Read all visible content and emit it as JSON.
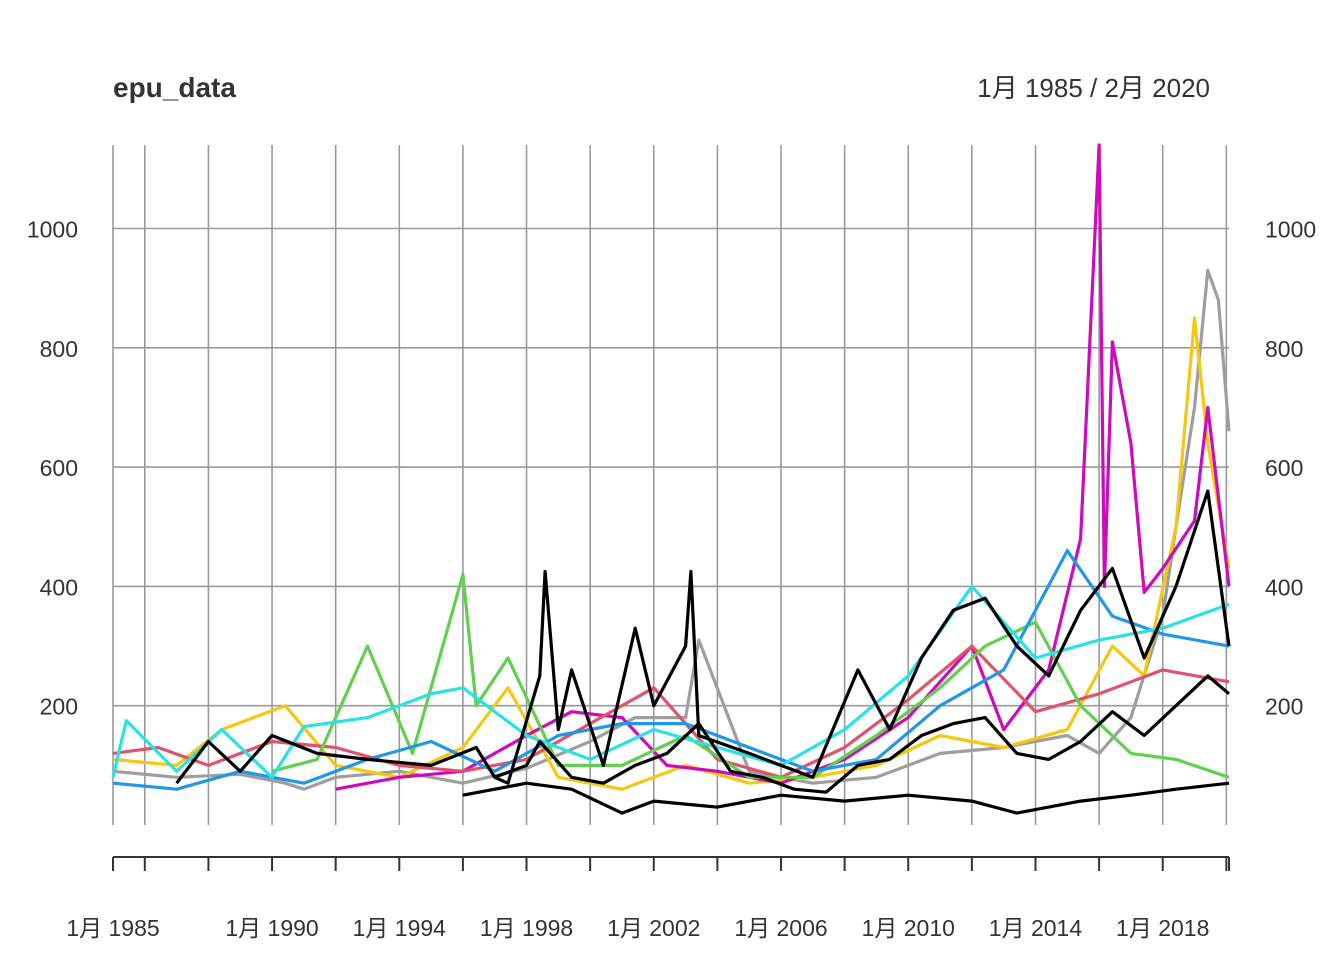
{
  "chart_data": {
    "type": "line",
    "title": "epu_data",
    "subtitle": "1月 1985 / 2月 2020",
    "xlabel": "",
    "ylabel": "",
    "x_range": [
      "1985-01",
      "2020-02"
    ],
    "ylim": [
      0,
      1140
    ],
    "y_ticks": [
      200,
      400,
      600,
      800,
      1000
    ],
    "y_tick_labels": [
      "200",
      "400",
      "600",
      "800",
      "1000"
    ],
    "y_axis_both_sides": true,
    "grid": true,
    "legend": "none",
    "x_ticks": [
      {
        "date": "1985-01",
        "label": "1月 1985"
      },
      {
        "date": "1990-01",
        "label": "1月 1990"
      },
      {
        "date": "1994-01",
        "label": "1月 1994"
      },
      {
        "date": "1998-01",
        "label": "1月 1998"
      },
      {
        "date": "2002-01",
        "label": "1月 2002"
      },
      {
        "date": "2006-01",
        "label": "1月 2006"
      },
      {
        "date": "2010-01",
        "label": "1月 2010"
      },
      {
        "date": "2014-01",
        "label": "1月 2014"
      },
      {
        "date": "2018-01",
        "label": "1月 2018"
      }
    ],
    "extra_gridlines": [
      "1986-01",
      "1988-01",
      "1992-01",
      "1996-01",
      "2000-01",
      "2004-01",
      "2008-01",
      "2012-01",
      "2016-01",
      "2020-01"
    ],
    "series": [
      {
        "color": "#9E9E9E",
        "points": [
          [
            "1985-01",
            90
          ],
          [
            "1987-01",
            80
          ],
          [
            "1989-01",
            85
          ],
          [
            "1990-06",
            70
          ],
          [
            "1991-01",
            60
          ],
          [
            "1992-01",
            80
          ],
          [
            "1994-01",
            90
          ],
          [
            "1996-01",
            70
          ],
          [
            "1998-01",
            95
          ],
          [
            "2000-01",
            140
          ],
          [
            "2001-06",
            180
          ],
          [
            "2003-01",
            180
          ],
          [
            "2003-06",
            310
          ],
          [
            "2005-01",
            90
          ],
          [
            "2007-01",
            70
          ],
          [
            "2009-01",
            80
          ],
          [
            "2011-01",
            120
          ],
          [
            "2013-01",
            130
          ],
          [
            "2015-01",
            150
          ],
          [
            "2016-01",
            120
          ],
          [
            "2017-01",
            180
          ],
          [
            "2018-01",
            350
          ],
          [
            "2018-06",
            500
          ],
          [
            "2019-01",
            700
          ],
          [
            "2019-06",
            930
          ],
          [
            "2019-10",
            880
          ],
          [
            "2020-02",
            660
          ]
        ]
      },
      {
        "color": "#F5C710",
        "points": [
          [
            "1985-01",
            110
          ],
          [
            "1987-01",
            100
          ],
          [
            "1988-06",
            160
          ],
          [
            "1990-06",
            200
          ],
          [
            "1992-01",
            100
          ],
          [
            "1994-01",
            80
          ],
          [
            "1996-01",
            130
          ],
          [
            "1997-06",
            230
          ],
          [
            "1999-01",
            80
          ],
          [
            "2001-01",
            60
          ],
          [
            "2003-01",
            100
          ],
          [
            "2005-01",
            70
          ],
          [
            "2007-01",
            80
          ],
          [
            "2009-01",
            100
          ],
          [
            "2011-01",
            150
          ],
          [
            "2013-01",
            130
          ],
          [
            "2015-01",
            160
          ],
          [
            "2016-06",
            300
          ],
          [
            "2017-06",
            250
          ],
          [
            "2018-06",
            500
          ],
          [
            "2019-01",
            850
          ],
          [
            "2019-06",
            640
          ],
          [
            "2020-02",
            430
          ]
        ]
      },
      {
        "color": "#CD0BBC",
        "points": [
          [
            "1992-01",
            60
          ],
          [
            "1994-01",
            80
          ],
          [
            "1996-01",
            90
          ],
          [
            "1998-01",
            150
          ],
          [
            "1999-06",
            190
          ],
          [
            "2001-01",
            180
          ],
          [
            "2002-06",
            100
          ],
          [
            "2004-01",
            90
          ],
          [
            "2006-01",
            70
          ],
          [
            "2008-01",
            110
          ],
          [
            "2010-01",
            180
          ],
          [
            "2012-01",
            300
          ],
          [
            "2013-01",
            160
          ],
          [
            "2014-06",
            260
          ],
          [
            "2015-06",
            480
          ],
          [
            "2016-01",
            1140
          ],
          [
            "2016-03",
            400
          ],
          [
            "2016-06",
            810
          ],
          [
            "2017-01",
            640
          ],
          [
            "2017-06",
            390
          ],
          [
            "2018-01",
            430
          ],
          [
            "2019-01",
            510
          ],
          [
            "2019-06",
            700
          ],
          [
            "2020-02",
            400
          ]
        ]
      },
      {
        "color": "#DF536B",
        "points": [
          [
            "1985-01",
            120
          ],
          [
            "1986-06",
            130
          ],
          [
            "1988-01",
            100
          ],
          [
            "1990-01",
            140
          ],
          [
            "1992-01",
            130
          ],
          [
            "1994-01",
            100
          ],
          [
            "1996-01",
            90
          ],
          [
            "1998-01",
            110
          ],
          [
            "2000-01",
            170
          ],
          [
            "2002-01",
            230
          ],
          [
            "2004-01",
            110
          ],
          [
            "2006-01",
            80
          ],
          [
            "2008-01",
            130
          ],
          [
            "2010-01",
            210
          ],
          [
            "2012-01",
            300
          ],
          [
            "2014-01",
            190
          ],
          [
            "2016-01",
            220
          ],
          [
            "2018-01",
            260
          ],
          [
            "2020-02",
            240
          ]
        ]
      },
      {
        "color": "#61D04F",
        "points": [
          [
            "1990-01",
            90
          ],
          [
            "1991-06",
            110
          ],
          [
            "1993-01",
            300
          ],
          [
            "1994-06",
            120
          ],
          [
            "1996-01",
            420
          ],
          [
            "1996-06",
            200
          ],
          [
            "1997-06",
            280
          ],
          [
            "1999-01",
            100
          ],
          [
            "2001-01",
            100
          ],
          [
            "2003-01",
            150
          ],
          [
            "2005-01",
            80
          ],
          [
            "2007-01",
            80
          ],
          [
            "2009-01",
            150
          ],
          [
            "2011-01",
            230
          ],
          [
            "2012-06",
            300
          ],
          [
            "2014-01",
            340
          ],
          [
            "2015-06",
            200
          ],
          [
            "2017-01",
            120
          ],
          [
            "2018-06",
            110
          ],
          [
            "2020-02",
            80
          ]
        ]
      },
      {
        "color": "#2297E6",
        "points": [
          [
            "1985-01",
            70
          ],
          [
            "1987-01",
            60
          ],
          [
            "1989-01",
            90
          ],
          [
            "1991-01",
            70
          ],
          [
            "1993-01",
            110
          ],
          [
            "1995-01",
            140
          ],
          [
            "1997-01",
            90
          ],
          [
            "1999-01",
            150
          ],
          [
            "2001-01",
            170
          ],
          [
            "2003-01",
            170
          ],
          [
            "2005-01",
            130
          ],
          [
            "2007-01",
            90
          ],
          [
            "2009-01",
            110
          ],
          [
            "2011-01",
            200
          ],
          [
            "2013-01",
            260
          ],
          [
            "2015-01",
            460
          ],
          [
            "2016-06",
            350
          ],
          [
            "2018-01",
            320
          ],
          [
            "2020-02",
            300
          ]
        ]
      },
      {
        "color": "#28E2E5",
        "points": [
          [
            "1985-01",
            80
          ],
          [
            "1985-06",
            175
          ],
          [
            "1987-01",
            90
          ],
          [
            "1988-06",
            160
          ],
          [
            "1990-01",
            80
          ],
          [
            "1991-01",
            165
          ],
          [
            "1993-01",
            180
          ],
          [
            "1995-01",
            220
          ],
          [
            "1996-01",
            230
          ],
          [
            "1998-01",
            150
          ],
          [
            "2000-01",
            110
          ],
          [
            "2002-01",
            160
          ],
          [
            "2004-01",
            130
          ],
          [
            "2006-01",
            100
          ],
          [
            "2008-01",
            160
          ],
          [
            "2010-01",
            250
          ],
          [
            "2012-01",
            400
          ],
          [
            "2014-01",
            280
          ],
          [
            "2016-01",
            310
          ],
          [
            "2018-01",
            330
          ],
          [
            "2020-02",
            370
          ]
        ]
      },
      {
        "color": "#000000",
        "points": [
          [
            "1987-01",
            70
          ],
          [
            "1988-01",
            140
          ],
          [
            "1989-01",
            90
          ],
          [
            "1990-01",
            150
          ],
          [
            "1991-06",
            120
          ],
          [
            "1993-01",
            110
          ],
          [
            "1995-01",
            100
          ],
          [
            "1996-06",
            130
          ],
          [
            "1997-01",
            80
          ],
          [
            "1997-06",
            70
          ],
          [
            "1998-06",
            250
          ],
          [
            "1998-08",
            425
          ],
          [
            "1999-01",
            160
          ],
          [
            "1999-06",
            260
          ],
          [
            "2000-06",
            100
          ],
          [
            "2001-06",
            330
          ],
          [
            "2002-01",
            200
          ],
          [
            "2003-01",
            300
          ],
          [
            "2003-03",
            425
          ],
          [
            "2003-06",
            150
          ],
          [
            "2005-01",
            120
          ],
          [
            "2007-01",
            80
          ],
          [
            "2008-06",
            260
          ],
          [
            "2009-06",
            160
          ],
          [
            "2010-06",
            280
          ],
          [
            "2011-06",
            360
          ],
          [
            "2012-06",
            380
          ],
          [
            "2013-06",
            300
          ],
          [
            "2014-06",
            250
          ],
          [
            "2015-06",
            360
          ],
          [
            "2016-06",
            430
          ],
          [
            "2017-06",
            280
          ],
          [
            "2018-06",
            400
          ],
          [
            "2019-06",
            560
          ],
          [
            "2020-02",
            300
          ]
        ]
      },
      {
        "color": "#000000",
        "points": [
          [
            "1996-01",
            50
          ],
          [
            "1998-01",
            70
          ],
          [
            "1999-06",
            60
          ],
          [
            "2001-01",
            20
          ],
          [
            "2002-01",
            40
          ],
          [
            "2004-01",
            30
          ],
          [
            "2006-01",
            50
          ],
          [
            "2008-01",
            40
          ],
          [
            "2010-01",
            50
          ],
          [
            "2012-01",
            40
          ],
          [
            "2013-06",
            20
          ],
          [
            "2015-06",
            40
          ],
          [
            "2017-01",
            50
          ],
          [
            "2018-06",
            60
          ],
          [
            "2020-02",
            70
          ]
        ]
      },
      {
        "color": "#000000",
        "points": [
          [
            "1997-01",
            80
          ],
          [
            "1998-01",
            100
          ],
          [
            "1998-06",
            140
          ],
          [
            "1999-06",
            80
          ],
          [
            "2000-06",
            70
          ],
          [
            "2001-06",
            100
          ],
          [
            "2002-06",
            120
          ],
          [
            "2003-06",
            170
          ],
          [
            "2004-06",
            90
          ],
          [
            "2005-06",
            80
          ],
          [
            "2006-06",
            60
          ],
          [
            "2007-06",
            55
          ],
          [
            "2008-06",
            100
          ],
          [
            "2009-06",
            110
          ],
          [
            "2010-06",
            150
          ],
          [
            "2011-06",
            170
          ],
          [
            "2012-06",
            180
          ],
          [
            "2013-06",
            120
          ],
          [
            "2014-06",
            110
          ],
          [
            "2015-06",
            140
          ],
          [
            "2016-06",
            190
          ],
          [
            "2017-06",
            150
          ],
          [
            "2018-06",
            200
          ],
          [
            "2019-06",
            250
          ],
          [
            "2020-02",
            220
          ]
        ]
      }
    ]
  }
}
